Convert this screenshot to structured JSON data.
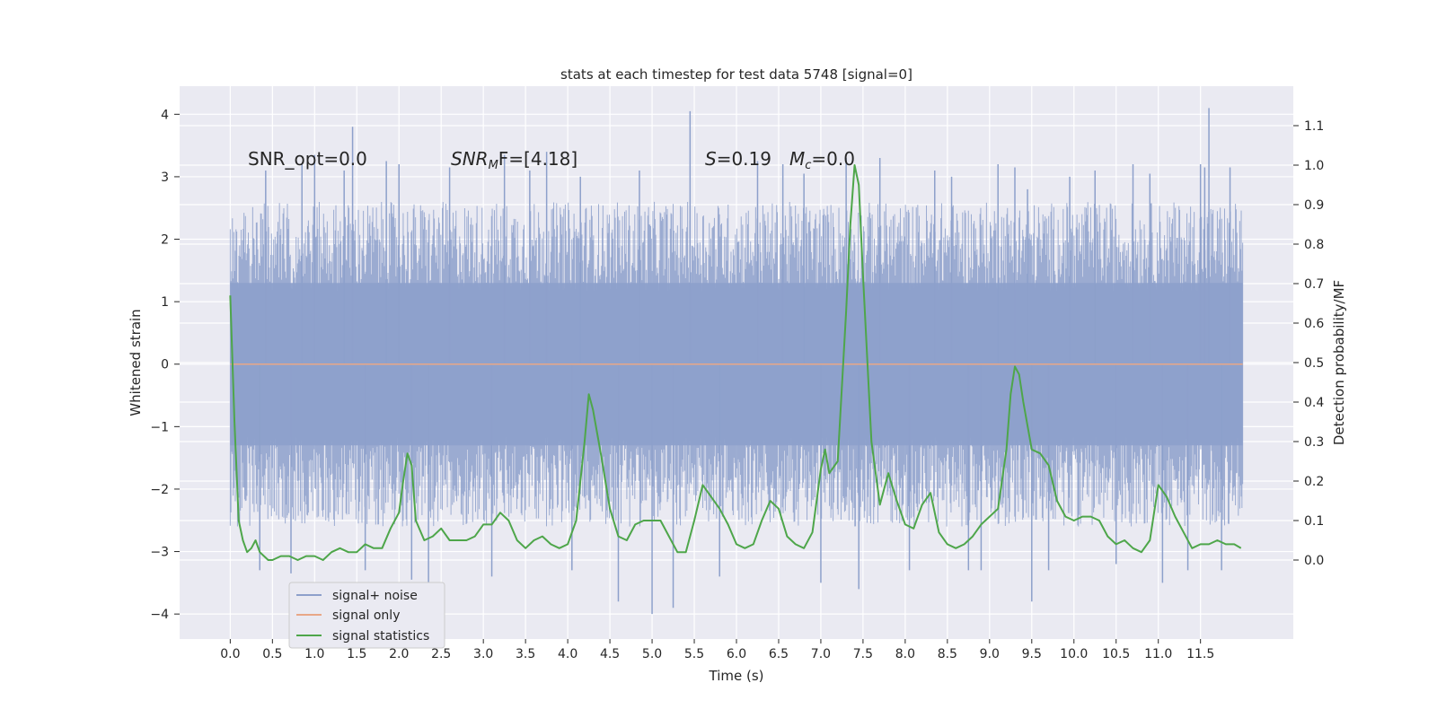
{
  "chart_data": {
    "type": "line",
    "title": "stats at each timestep for test data 5748 [signal=0]",
    "xlabel": "Time (s)",
    "ylabel": "Whitened strain",
    "y2label": "Detection probability/MF",
    "xlim": [
      -0.6,
      12.6
    ],
    "ylim": [
      -4.4,
      4.45
    ],
    "y2lim": [
      -0.2,
      1.2
    ],
    "grid": true,
    "legend_position": "lower-left",
    "x_ticks": [
      0.0,
      0.5,
      1.0,
      1.5,
      2.0,
      2.5,
      3.0,
      3.5,
      4.0,
      4.5,
      5.0,
      5.5,
      6.0,
      6.5,
      7.0,
      7.5,
      8.0,
      8.5,
      9.0,
      9.5,
      10.0,
      10.5,
      11.0,
      11.5
    ],
    "x_tick_labels": [
      "0.0",
      "0.5",
      "1.0",
      "1.5",
      "2.0",
      "2.5",
      "3.0",
      "3.5",
      "4.0",
      "4.5",
      "5.0",
      "5.5",
      "6.0",
      "6.5",
      "7.0",
      "7.5",
      "8.0",
      "8.5",
      "9.0",
      "9.5",
      "10.0",
      "10.5",
      "11.0",
      "11.5"
    ],
    "y_ticks": [
      -4,
      -3,
      -2,
      -1,
      0,
      1,
      2,
      3,
      4
    ],
    "y_tick_labels": [
      "−4",
      "−3",
      "−2",
      "−1",
      "0",
      "1",
      "2",
      "3",
      "4"
    ],
    "y2_ticks": [
      0.0,
      0.1,
      0.2,
      0.3,
      0.4,
      0.5,
      0.6,
      0.7,
      0.8,
      0.9,
      1.0,
      1.1
    ],
    "y2_tick_labels": [
      "0.0",
      "0.1",
      "0.2",
      "0.3",
      "0.4",
      "0.5",
      "0.6",
      "0.7",
      "0.8",
      "0.9",
      "1.0",
      "1.1"
    ],
    "annotations": {
      "snr_opt": "SNR_opt=0.0",
      "snr_mf_prefix": "SNR",
      "snr_mf_sub": "M",
      "snr_mf_rest": "F=[4.18]",
      "s_prefix": "S",
      "s_value": "=0.19",
      "mc_prefix": "M",
      "mc_sub": "c",
      "mc_value": "=0.0"
    },
    "series": [
      {
        "name": "signal+ noise",
        "color": "#8da0cb",
        "axis": "left",
        "x_range": [
          0.0,
          12.0
        ],
        "band_min": -2.6,
        "band_max": 2.6,
        "spikes": [
          [
            0.35,
            -3.3
          ],
          [
            0.42,
            3.1
          ],
          [
            0.72,
            -3.35
          ],
          [
            0.85,
            3.2
          ],
          [
            1.0,
            3.35
          ],
          [
            1.35,
            3.1
          ],
          [
            1.45,
            3.8
          ],
          [
            1.6,
            -3.3
          ],
          [
            1.85,
            3.25
          ],
          [
            2.0,
            3.2
          ],
          [
            2.15,
            -3.45
          ],
          [
            2.35,
            -3.7
          ],
          [
            2.6,
            3.15
          ],
          [
            3.1,
            -3.4
          ],
          [
            3.25,
            3.35
          ],
          [
            3.55,
            3.1
          ],
          [
            3.75,
            3.4
          ],
          [
            4.05,
            -3.3
          ],
          [
            4.15,
            3.0
          ],
          [
            4.6,
            -3.8
          ],
          [
            4.85,
            3.1
          ],
          [
            5.0,
            -4.0
          ],
          [
            5.25,
            -3.9
          ],
          [
            5.45,
            4.05
          ],
          [
            5.8,
            -3.4
          ],
          [
            6.25,
            3.25
          ],
          [
            6.55,
            3.2
          ],
          [
            6.8,
            3.05
          ],
          [
            7.0,
            -3.5
          ],
          [
            7.3,
            3.3
          ],
          [
            7.45,
            -3.6
          ],
          [
            7.7,
            3.3
          ],
          [
            8.05,
            -3.3
          ],
          [
            8.35,
            3.1
          ],
          [
            8.55,
            3.0
          ],
          [
            8.75,
            -3.3
          ],
          [
            8.9,
            -3.3
          ],
          [
            9.1,
            3.2
          ],
          [
            9.3,
            3.15
          ],
          [
            9.45,
            2.8
          ],
          [
            9.5,
            -3.8
          ],
          [
            9.7,
            -3.3
          ],
          [
            9.95,
            3.0
          ],
          [
            10.25,
            3.1
          ],
          [
            10.5,
            -3.2
          ],
          [
            10.7,
            3.2
          ],
          [
            10.9,
            3.05
          ],
          [
            11.05,
            -3.5
          ],
          [
            11.35,
            -3.3
          ],
          [
            11.5,
            3.2
          ],
          [
            11.55,
            3.15
          ],
          [
            11.6,
            4.1
          ],
          [
            11.75,
            -3.3
          ],
          [
            11.85,
            3.15
          ]
        ]
      },
      {
        "name": "signal only",
        "color": "#e8a787",
        "axis": "left",
        "x": [
          0.0,
          12.0
        ],
        "y": [
          0.0,
          0.0
        ]
      },
      {
        "name": "signal statistics",
        "color": "#4ea64a",
        "axis": "right",
        "x": [
          0.0,
          0.05,
          0.1,
          0.15,
          0.2,
          0.25,
          0.3,
          0.35,
          0.4,
          0.45,
          0.5,
          0.6,
          0.7,
          0.8,
          0.9,
          1.0,
          1.1,
          1.2,
          1.3,
          1.4,
          1.5,
          1.6,
          1.7,
          1.8,
          1.9,
          2.0,
          2.05,
          2.1,
          2.15,
          2.2,
          2.3,
          2.4,
          2.5,
          2.6,
          2.7,
          2.8,
          2.9,
          3.0,
          3.1,
          3.2,
          3.3,
          3.4,
          3.5,
          3.6,
          3.7,
          3.8,
          3.9,
          4.0,
          4.1,
          4.2,
          4.25,
          4.3,
          4.4,
          4.5,
          4.6,
          4.7,
          4.8,
          4.9,
          5.0,
          5.1,
          5.2,
          5.3,
          5.4,
          5.5,
          5.6,
          5.7,
          5.8,
          5.9,
          6.0,
          6.1,
          6.2,
          6.3,
          6.4,
          6.5,
          6.6,
          6.7,
          6.8,
          6.9,
          7.0,
          7.05,
          7.1,
          7.2,
          7.3,
          7.35,
          7.4,
          7.45,
          7.5,
          7.6,
          7.7,
          7.8,
          7.9,
          8.0,
          8.1,
          8.2,
          8.3,
          8.4,
          8.5,
          8.6,
          8.7,
          8.8,
          8.9,
          9.0,
          9.1,
          9.2,
          9.25,
          9.3,
          9.35,
          9.4,
          9.5,
          9.6,
          9.7,
          9.8,
          9.9,
          10.0,
          10.1,
          10.2,
          10.3,
          10.4,
          10.5,
          10.6,
          10.7,
          10.8,
          10.9,
          11.0,
          11.1,
          11.2,
          11.3,
          11.4,
          11.5,
          11.6,
          11.7,
          11.8,
          11.9,
          11.98
        ],
        "y": [
          0.67,
          0.35,
          0.1,
          0.05,
          0.02,
          0.03,
          0.05,
          0.02,
          0.01,
          0.0,
          0.0,
          0.01,
          0.01,
          0.0,
          0.01,
          0.01,
          0.0,
          0.02,
          0.03,
          0.02,
          0.02,
          0.04,
          0.03,
          0.03,
          0.08,
          0.12,
          0.2,
          0.27,
          0.24,
          0.1,
          0.05,
          0.06,
          0.08,
          0.05,
          0.05,
          0.05,
          0.06,
          0.09,
          0.09,
          0.12,
          0.1,
          0.05,
          0.03,
          0.05,
          0.06,
          0.04,
          0.03,
          0.04,
          0.1,
          0.3,
          0.42,
          0.38,
          0.26,
          0.13,
          0.06,
          0.05,
          0.09,
          0.1,
          0.1,
          0.1,
          0.06,
          0.02,
          0.02,
          0.1,
          0.19,
          0.16,
          0.13,
          0.09,
          0.04,
          0.03,
          0.04,
          0.1,
          0.15,
          0.13,
          0.06,
          0.04,
          0.03,
          0.07,
          0.23,
          0.28,
          0.22,
          0.25,
          0.63,
          0.85,
          1.0,
          0.95,
          0.72,
          0.3,
          0.14,
          0.22,
          0.15,
          0.09,
          0.08,
          0.14,
          0.17,
          0.07,
          0.04,
          0.03,
          0.04,
          0.06,
          0.09,
          0.11,
          0.13,
          0.28,
          0.42,
          0.49,
          0.47,
          0.4,
          0.28,
          0.27,
          0.24,
          0.15,
          0.11,
          0.1,
          0.11,
          0.11,
          0.1,
          0.06,
          0.04,
          0.05,
          0.03,
          0.02,
          0.05,
          0.19,
          0.16,
          0.11,
          0.07,
          0.03,
          0.04,
          0.04,
          0.05,
          0.04,
          0.04,
          0.03
        ]
      }
    ]
  }
}
